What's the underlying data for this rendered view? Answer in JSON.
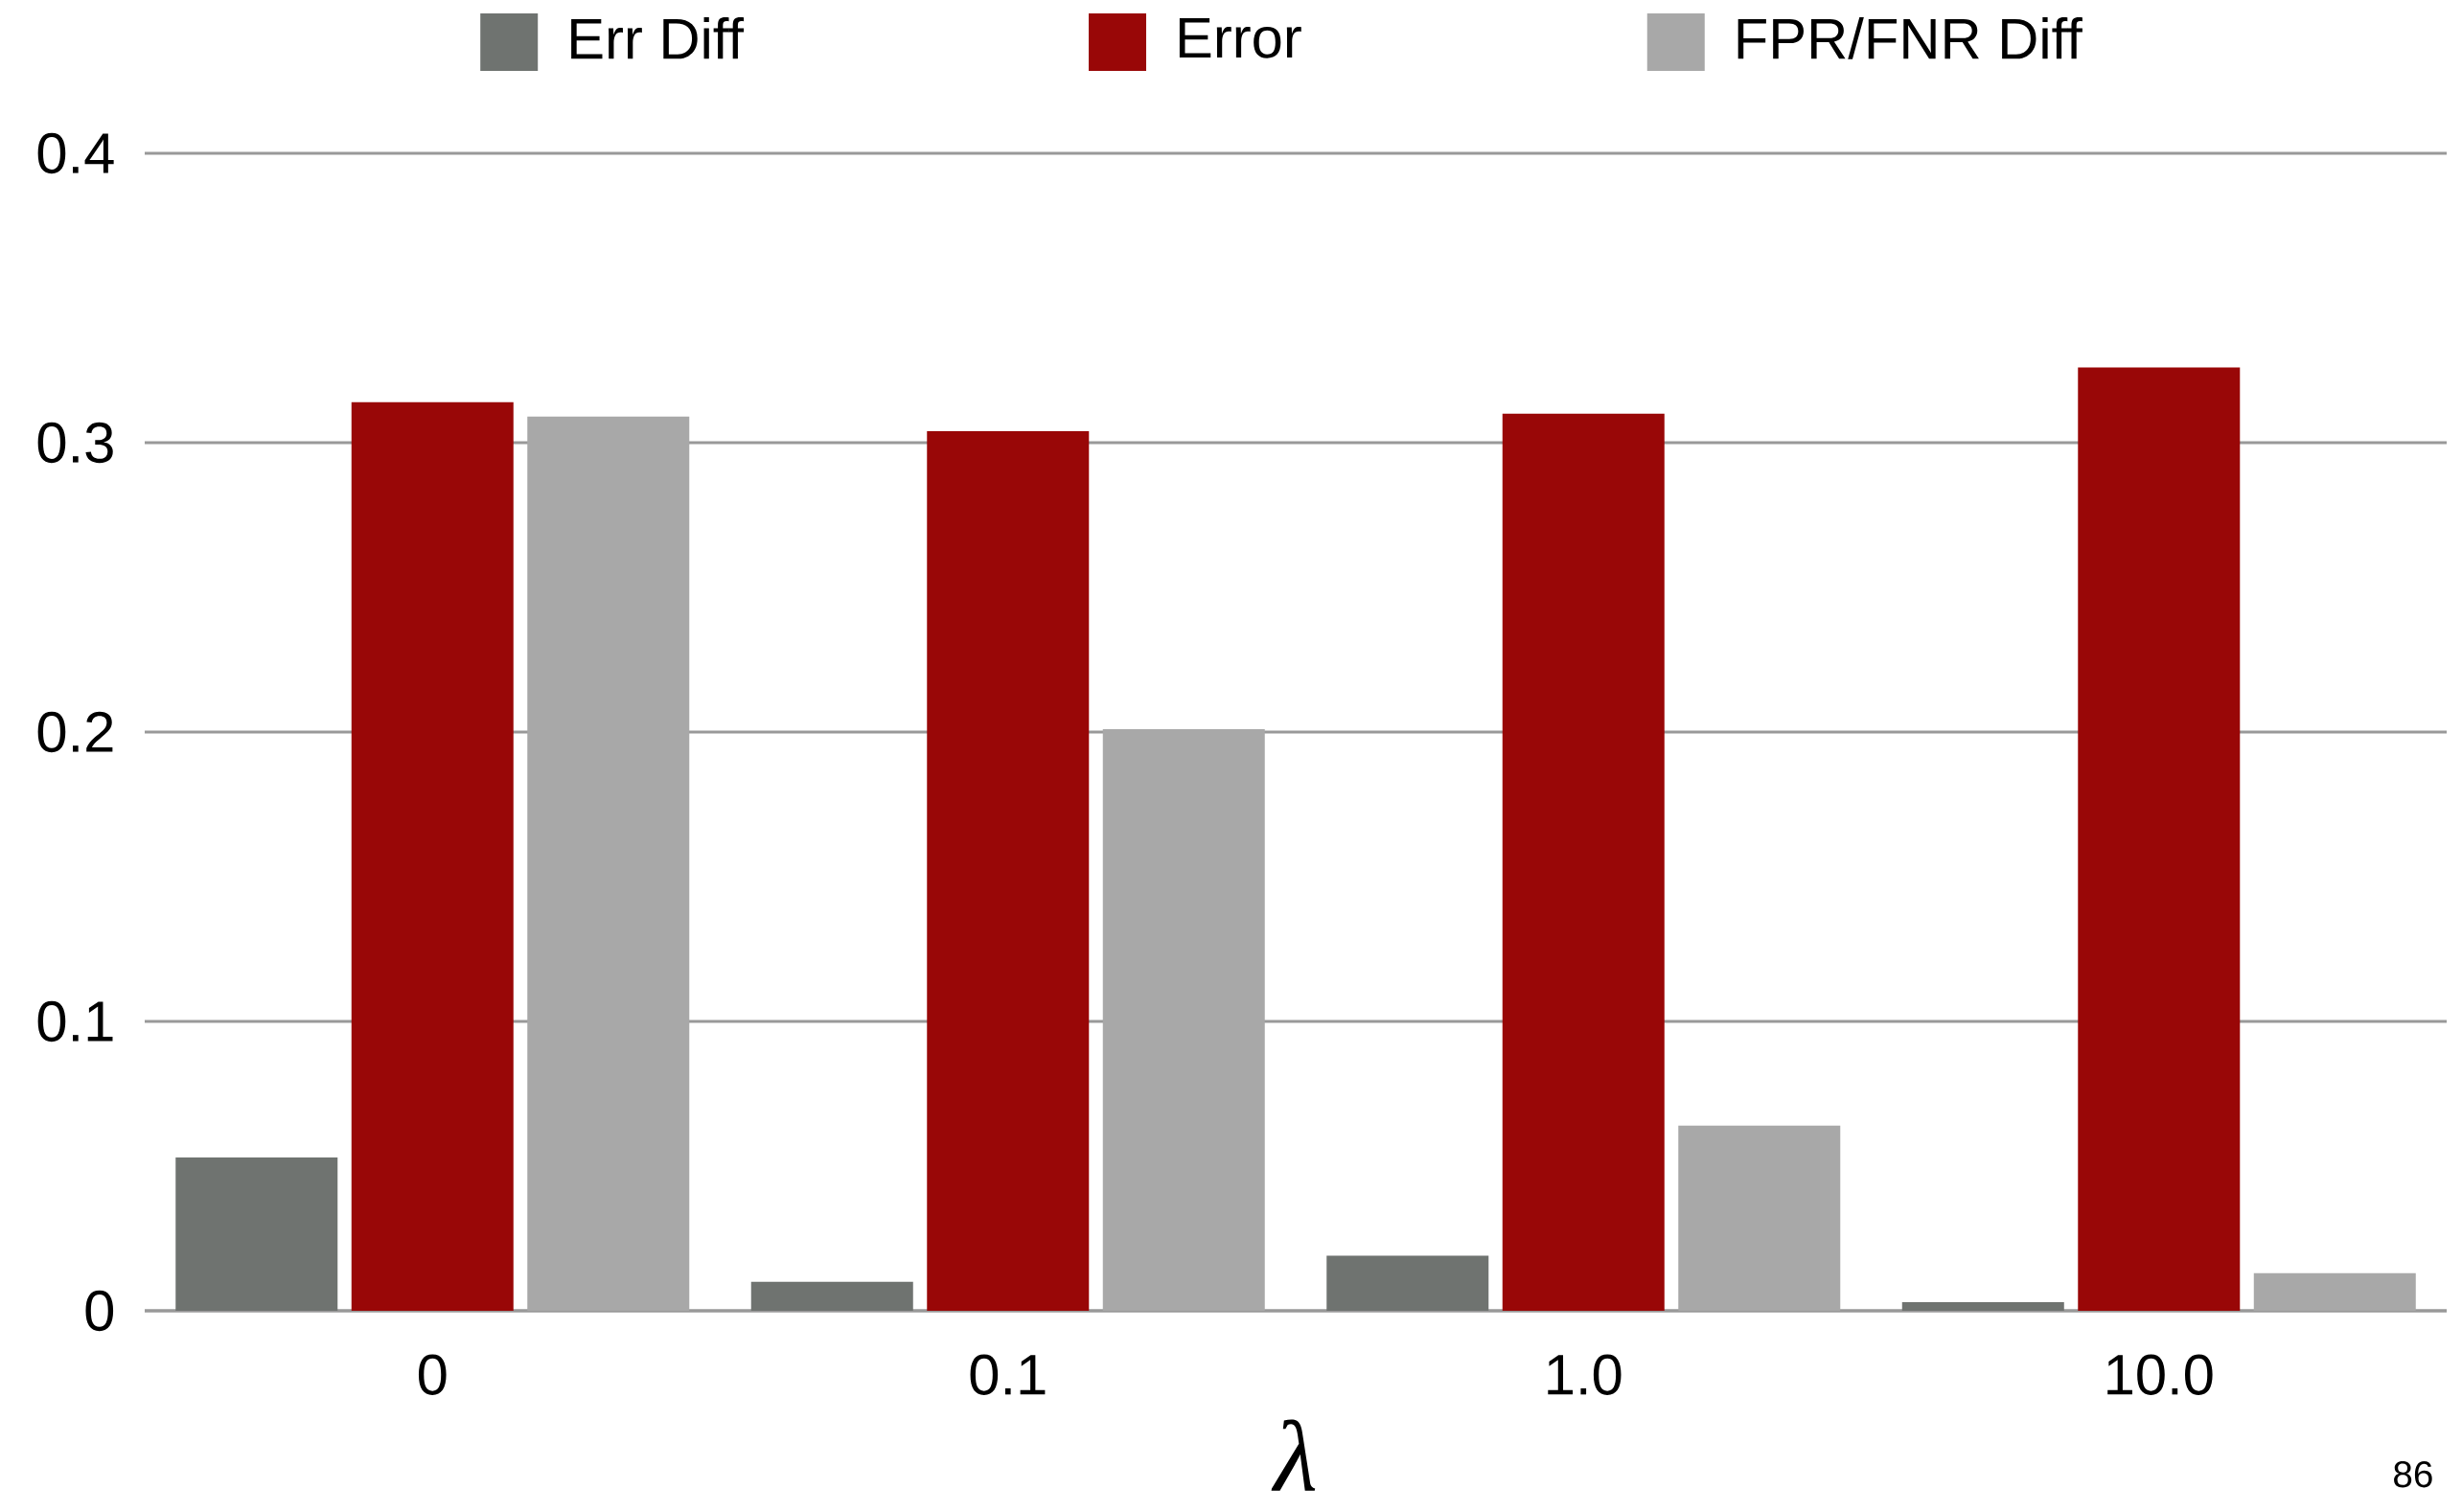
{
  "chart_data": {
    "type": "bar",
    "xlabel": "λ",
    "categories": [
      "0",
      "0.1",
      "1.0",
      "10.0"
    ],
    "series": [
      {
        "name": "Err Diff",
        "color": "#6f7370",
        "values": [
          0.053,
          0.01,
          0.019,
          0.003
        ]
      },
      {
        "name": "Error",
        "color": "#990707",
        "values": [
          0.314,
          0.304,
          0.31,
          0.326
        ]
      },
      {
        "name": "FPR/FNR Diff",
        "color": "#a8a8a8",
        "values": [
          0.309,
          0.201,
          0.064,
          0.013
        ]
      }
    ],
    "ylim": [
      0,
      0.4
    ],
    "yticks": [
      {
        "value": 0,
        "label": "0"
      },
      0.1,
      0.2,
      0.3,
      0.4
    ],
    "grid": "y",
    "legend": "top",
    "annotations": [
      "86"
    ]
  }
}
